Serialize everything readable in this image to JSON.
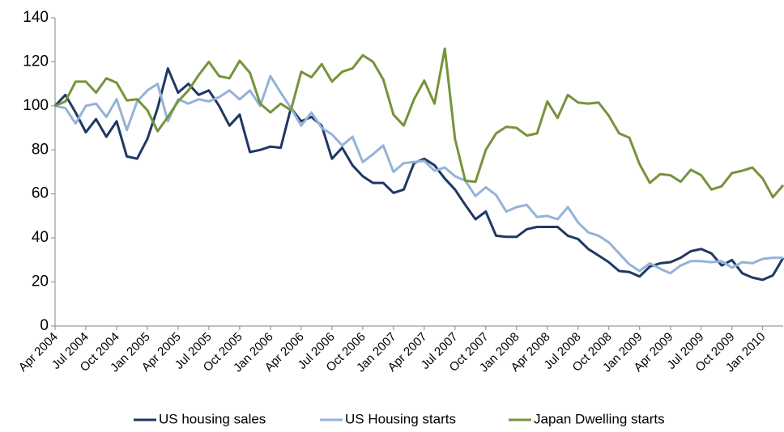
{
  "chart_data": {
    "type": "line",
    "categories": [
      "Apr 2004",
      null,
      null,
      "Jul 2004",
      null,
      null,
      "Oct 2004",
      null,
      null,
      "Jan 2005",
      null,
      null,
      "Apr 2005",
      null,
      null,
      "Jul 2005",
      null,
      null,
      "Oct 2005",
      null,
      null,
      "Jan 2006",
      null,
      null,
      "Apr 2006",
      null,
      null,
      "Jul 2006",
      null,
      null,
      "Oct 2006",
      null,
      null,
      "Jan 2007",
      null,
      null,
      "Apr 2007",
      null,
      null,
      "Jul 2007",
      null,
      null,
      "Oct 2007",
      null,
      null,
      "Jan 2008",
      null,
      null,
      "Apr 2008",
      null,
      null,
      "Jul 2008",
      null,
      null,
      "Oct 2008",
      null,
      null,
      "Jan 2009",
      null,
      null,
      "Apr 2009",
      null,
      null,
      "Jul 2009",
      null,
      null,
      "Oct 2009",
      null,
      null,
      "Jan 2010",
      null,
      null
    ],
    "series": [
      {
        "name": "US housing sales",
        "color": "#1f3864",
        "values": [
          100,
          105,
          97,
          88,
          94,
          86,
          93,
          77,
          76,
          85,
          99,
          117,
          106,
          110,
          105,
          107,
          100,
          91,
          96,
          79,
          80,
          81.5,
          81,
          99,
          93,
          95,
          91,
          76,
          81,
          73,
          68,
          65,
          65,
          60.5,
          62,
          74,
          76,
          73,
          67,
          62,
          55,
          48.5,
          52,
          41,
          40.5,
          40.5,
          44,
          45,
          45,
          45,
          41,
          39.5,
          35,
          32,
          29,
          25,
          24.5,
          22.5,
          27,
          28.5,
          29,
          31,
          34,
          35,
          33,
          27.5,
          30,
          24,
          22,
          21,
          23,
          31
        ]
      },
      {
        "name": "US Housing starts",
        "color": "#95b3d7",
        "values": [
          100,
          99,
          92,
          100,
          101,
          95,
          103,
          89,
          102,
          107,
          110,
          93,
          103,
          101,
          103,
          102,
          104,
          107,
          103,
          107,
          100,
          113.5,
          106,
          99,
          91,
          97,
          90,
          87,
          82,
          86,
          74.5,
          78,
          82,
          70,
          74,
          74.5,
          75,
          70.5,
          72,
          68,
          66,
          59,
          63,
          59.5,
          52,
          54,
          55,
          49.5,
          50,
          48.5,
          54,
          47,
          42.5,
          41,
          38,
          33,
          28,
          25,
          28.5,
          26,
          24,
          27.5,
          29.5,
          29.5,
          29,
          29.5,
          26.5,
          29,
          28.5,
          30.5,
          31,
          31
        ]
      },
      {
        "name": "Japan Dwelling starts",
        "color": "#77933c",
        "values": [
          100,
          102,
          111,
          111,
          106,
          112.5,
          110.5,
          102.5,
          103,
          98,
          88.5,
          95,
          102,
          107,
          114,
          120,
          113.5,
          112.5,
          120.5,
          115,
          101,
          97,
          101,
          98,
          115.5,
          113,
          119,
          111,
          115.5,
          117,
          123,
          120,
          112,
          96,
          91,
          103,
          111.5,
          101,
          126,
          85,
          66,
          65.5,
          80,
          87.5,
          90.5,
          90,
          86.5,
          87.5,
          102,
          94.5,
          105,
          101.5,
          101,
          101.5,
          95.5,
          87.5,
          85.5,
          73.5,
          65,
          69,
          68.5,
          65.5,
          71,
          68.5,
          62,
          63.5,
          69.5,
          70.5,
          72,
          67,
          58.5,
          64
        ]
      }
    ],
    "ylim": [
      0,
      140
    ],
    "yticks": [
      0,
      20,
      40,
      60,
      80,
      100,
      120,
      140
    ],
    "grid": false,
    "legend": "bottom"
  }
}
